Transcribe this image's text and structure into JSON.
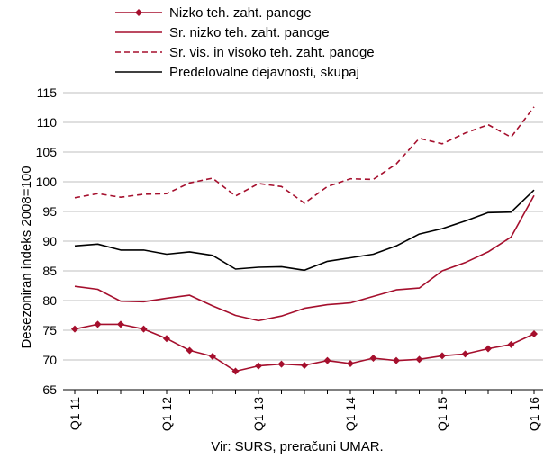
{
  "chart_data": {
    "type": "line",
    "title": "",
    "ylabel": "Desezoniran indeks  2008=100",
    "xlabel": "",
    "ylim": [
      65,
      115
    ],
    "yticks": [
      65,
      70,
      75,
      80,
      85,
      90,
      95,
      100,
      105,
      110,
      115
    ],
    "grid": "horizontal",
    "legend_position": "top",
    "x_tick_labels": [
      "Q1 11",
      "Q1 12",
      "Q1 13",
      "Q1 14",
      "Q1 15",
      "Q1 16"
    ],
    "x": [
      "Q1 11",
      "Q2 11",
      "Q3 11",
      "Q4 11",
      "Q1 12",
      "Q2 12",
      "Q3 12",
      "Q4 12",
      "Q1 13",
      "Q2 13",
      "Q3 13",
      "Q4 13",
      "Q1 14",
      "Q2 14",
      "Q3 14",
      "Q4 14",
      "Q1 15",
      "Q2 15",
      "Q3 15",
      "Q4 15",
      "Q1 16"
    ],
    "series": [
      {
        "name": "Nizko teh. zaht. panoge",
        "color": "#a50f2d",
        "style": "line-diamond",
        "values": [
          75.2,
          76.0,
          76.0,
          75.2,
          73.6,
          71.6,
          70.6,
          68.1,
          69.0,
          69.3,
          69.1,
          69.9,
          69.4,
          70.3,
          69.9,
          70.1,
          70.7,
          71.0,
          71.9,
          72.6,
          74.4
        ]
      },
      {
        "name": "Sr. nizko teh. zaht. panoge",
        "color": "#a50f2d",
        "style": "solid",
        "values": [
          82.4,
          81.9,
          79.9,
          79.8,
          80.4,
          80.9,
          79.1,
          77.5,
          76.6,
          77.4,
          78.7,
          79.3,
          79.6,
          80.7,
          81.8,
          82.1,
          85.0,
          86.4,
          88.2,
          90.7,
          97.7
        ]
      },
      {
        "name": "Sr. vis. in visoko teh. zaht. panoge",
        "color": "#a50f2d",
        "style": "dashed",
        "values": [
          97.3,
          98.0,
          97.4,
          97.9,
          98.0,
          99.8,
          100.6,
          97.6,
          99.7,
          99.2,
          96.4,
          99.2,
          100.5,
          100.4,
          103.0,
          107.3,
          106.4,
          108.2,
          109.6,
          107.5,
          112.6
        ]
      },
      {
        "name": "Predelovalne dejavnosti, skupaj",
        "color": "#000000",
        "style": "solid",
        "values": [
          89.2,
          89.5,
          88.5,
          88.5,
          87.8,
          88.2,
          87.6,
          85.3,
          85.6,
          85.7,
          85.1,
          86.6,
          87.2,
          87.8,
          89.2,
          91.2,
          92.1,
          93.4,
          94.8,
          94.9,
          98.6
        ]
      }
    ],
    "source": "Vir: SURS, preračuni UMAR."
  }
}
